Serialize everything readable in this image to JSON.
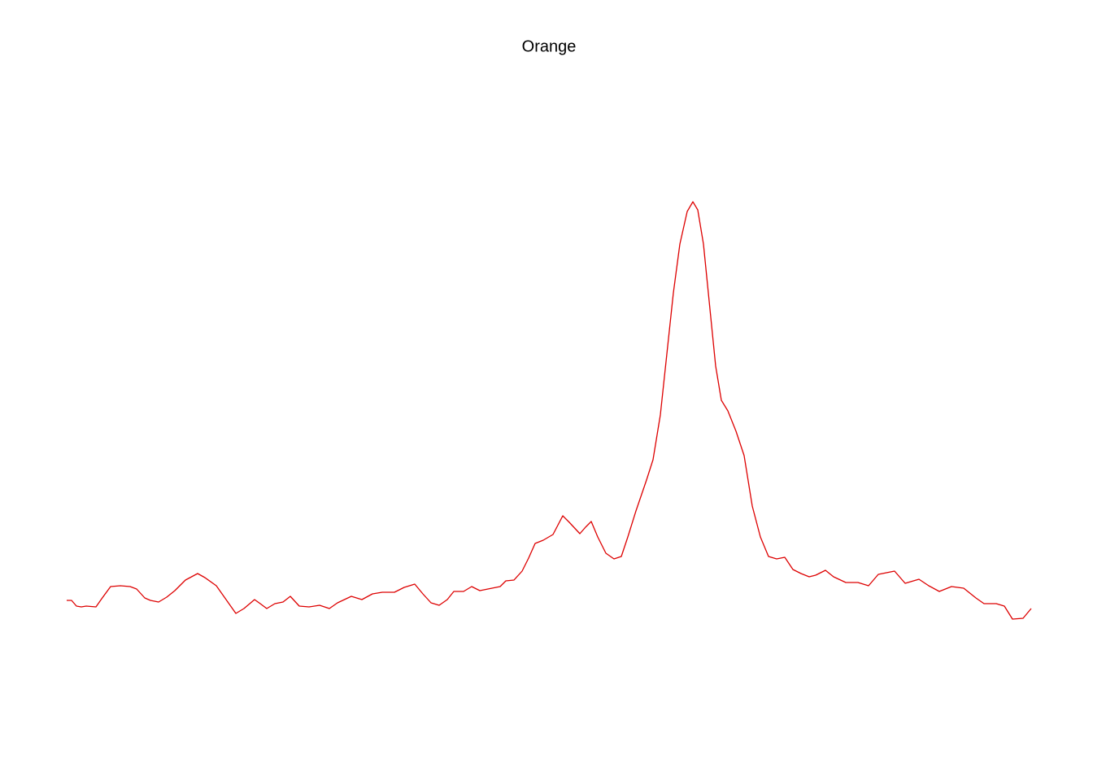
{
  "chart_data": {
    "type": "line",
    "title": "Orange",
    "color": "#dd0000",
    "x": [
      0,
      6,
      12,
      18,
      24,
      36,
      43,
      54,
      66,
      78,
      86,
      96,
      103,
      113,
      123,
      133,
      146,
      161,
      170,
      184,
      196,
      208,
      218,
      231,
      238,
      246,
      256,
      266,
      275,
      286,
      298,
      311,
      323,
      333,
      350,
      363,
      376,
      388,
      403,
      415,
      428,
      438,
      448,
      458,
      468,
      476,
      488,
      498,
      508,
      523,
      533,
      540,
      550,
      560,
      568,
      576,
      586,
      598,
      610,
      618,
      631,
      638,
      645,
      653,
      663,
      673,
      682,
      690,
      700,
      713,
      721,
      730,
      738,
      746,
      754,
      763,
      770,
      776,
      783,
      790,
      798,
      805,
      813,
      823,
      833,
      843,
      853,
      863,
      873,
      883,
      893,
      903,
      913,
      921,
      933,
      943,
      958,
      973,
      986,
      998,
      1008,
      1018,
      1031,
      1048,
      1060,
      1073,
      1088,
      1103,
      1118,
      1128,
      1143,
      1153,
      1163,
      1176,
      1186
    ],
    "values": [
      62,
      62,
      55,
      54,
      55,
      54,
      64,
      79,
      80,
      79,
      76,
      65,
      62,
      60,
      66,
      74,
      87,
      95,
      90,
      80,
      63,
      46,
      52,
      63,
      58,
      52,
      58,
      60,
      67,
      55,
      54,
      56,
      52,
      59,
      67,
      63,
      70,
      72,
      72,
      78,
      82,
      70,
      59,
      56,
      63,
      73,
      73,
      79,
      74,
      77,
      79,
      86,
      87,
      98,
      114,
      132,
      136,
      143,
      166,
      158,
      144,
      152,
      159,
      140,
      120,
      113,
      116,
      140,
      172,
      210,
      235,
      290,
      365,
      440,
      500,
      540,
      552,
      542,
      500,
      430,
      350,
      308,
      295,
      270,
      240,
      178,
      140,
      116,
      113,
      115,
      100,
      95,
      91,
      93,
      99,
      91,
      84,
      84,
      80,
      94,
      96,
      98,
      83,
      88,
      80,
      73,
      79,
      77,
      65,
      58,
      58,
      55,
      39,
      40,
      52
    ],
    "xlim": [
      0,
      1186
    ],
    "ylim": [
      0,
      700
    ]
  }
}
